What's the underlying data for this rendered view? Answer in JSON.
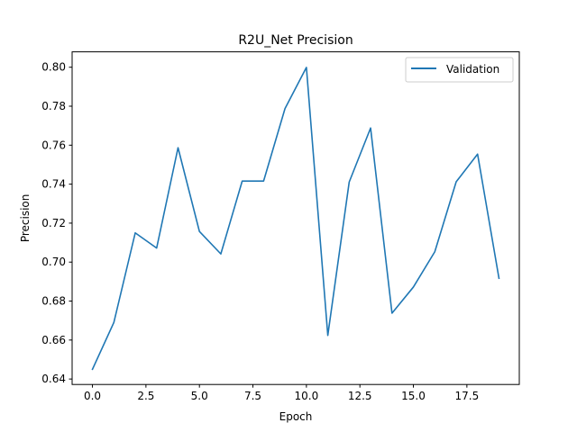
{
  "chart_data": {
    "type": "line",
    "title": "R2U_Net Precision",
    "xlabel": "Epoch",
    "ylabel": "Precision",
    "xlim": [
      -0.95,
      19.95
    ],
    "ylim": [
      0.6372,
      0.8079
    ],
    "x_ticks": [
      0.0,
      2.5,
      5.0,
      7.5,
      10.0,
      12.5,
      15.0,
      17.5
    ],
    "x_tick_labels": [
      "0.0",
      "2.5",
      "5.0",
      "7.5",
      "10.0",
      "12.5",
      "15.0",
      "17.5"
    ],
    "y_ticks": [
      0.64,
      0.66,
      0.68,
      0.7,
      0.72,
      0.74,
      0.76,
      0.78,
      0.8
    ],
    "y_tick_labels": [
      "0.64",
      "0.66",
      "0.68",
      "0.70",
      "0.72",
      "0.74",
      "0.76",
      "0.78",
      "0.80"
    ],
    "grid": false,
    "legend_position": "top-right",
    "series": [
      {
        "name": "Validation",
        "color": "#1f77b4",
        "x": [
          0,
          1,
          2,
          3,
          4,
          5,
          6,
          7,
          8,
          9,
          10,
          11,
          12,
          13,
          14,
          15,
          16,
          17,
          18,
          19
        ],
        "values": [
          0.645,
          0.669,
          0.715,
          0.7072,
          0.7587,
          0.7157,
          0.7042,
          0.7416,
          0.7416,
          0.7788,
          0.7999,
          0.6624,
          0.7411,
          0.7688,
          0.6738,
          0.6872,
          0.7053,
          0.7412,
          0.7554,
          0.6917
        ]
      }
    ]
  }
}
